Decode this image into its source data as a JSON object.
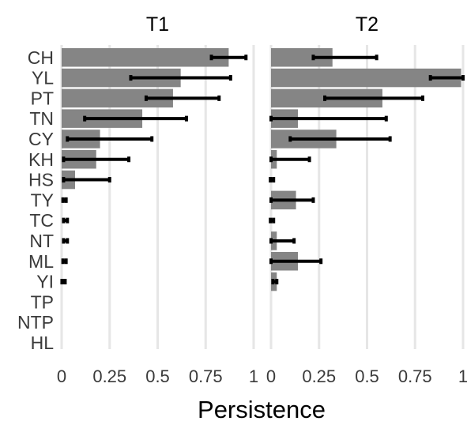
{
  "chart_data": {
    "type": "bar",
    "orientation": "horizontal",
    "xlabel": "Persistence",
    "xlim": [
      0,
      1
    ],
    "xticks": [
      "0",
      "0.25",
      "0.5",
      "0.75",
      "1"
    ],
    "categories": [
      "CH",
      "YL",
      "PT",
      "TN",
      "CY",
      "KH",
      "HS",
      "TY",
      "TC",
      "NT",
      "ML",
      "YI",
      "TP",
      "NTP",
      "HL"
    ],
    "grid": true,
    "colors": {
      "bar": "#858585",
      "errorbar": "#000000",
      "grid": "#e6e6e6",
      "text": "#3a3a3a"
    },
    "panels": [
      {
        "title": "T1",
        "values": [
          0.87,
          0.62,
          0.58,
          0.42,
          0.2,
          0.18,
          0.07,
          0.0,
          0.0,
          0.0,
          0.0,
          0.0,
          0.0,
          0.0,
          0.0
        ],
        "err_low": [
          0.78,
          0.36,
          0.44,
          0.12,
          0.03,
          0.01,
          0.01,
          0.01,
          0.01,
          0.01,
          0.01,
          0.01,
          null,
          null,
          null
        ],
        "err_high": [
          0.96,
          0.88,
          0.82,
          0.65,
          0.47,
          0.35,
          0.25,
          0.02,
          0.03,
          0.03,
          0.02,
          0.01,
          null,
          null,
          null
        ]
      },
      {
        "title": "T2",
        "values": [
          0.32,
          0.99,
          0.58,
          0.14,
          0.34,
          0.03,
          0.0,
          0.13,
          0.0,
          0.03,
          0.14,
          0.03,
          0.0,
          0.0,
          0.0
        ],
        "err_low": [
          0.22,
          0.83,
          0.28,
          0.0,
          0.1,
          0.0,
          0.0,
          0.0,
          0.0,
          0.0,
          0.0,
          0.01,
          null,
          null,
          null
        ],
        "err_high": [
          0.55,
          1.0,
          0.79,
          0.6,
          0.62,
          0.2,
          0.01,
          0.22,
          0.01,
          0.12,
          0.26,
          0.03,
          null,
          null,
          null
        ]
      }
    ]
  }
}
